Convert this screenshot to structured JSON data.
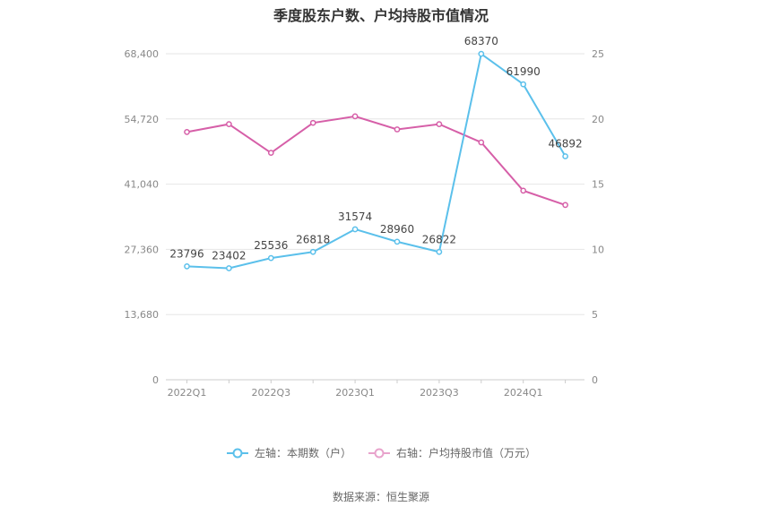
{
  "title": "季度股东户数、户均持股市值情况",
  "source": "数据来源：恒生聚源",
  "colors": {
    "left": "#5bc0eb",
    "right": "#d65fa8"
  },
  "chart_data": {
    "type": "line",
    "categories": [
      "2022Q1",
      "2022Q2",
      "2022Q3",
      "2022Q4",
      "2023Q1",
      "2023Q2",
      "2023Q3",
      "2023Q4",
      "2024Q1",
      "2024Q2"
    ],
    "x_tick_labels": [
      "2022Q1",
      "2022Q3",
      "2023Q1",
      "2023Q3",
      "2024Q1"
    ],
    "left_axis": {
      "ylim": [
        0,
        68400
      ],
      "ticks": [
        0,
        13680,
        27360,
        41040,
        54720,
        68400
      ],
      "tick_labels": [
        "0",
        "13,680",
        "27,360",
        "41,040",
        "54,720",
        "68,400"
      ]
    },
    "right_axis": {
      "ylim": [
        0,
        25
      ],
      "ticks": [
        0,
        5,
        10,
        15,
        20,
        25
      ],
      "tick_labels": [
        "0",
        "5",
        "10",
        "15",
        "20",
        "25"
      ]
    },
    "series": [
      {
        "name": "左轴：本期数（户）",
        "axis": "left",
        "values": [
          23796,
          23402,
          25536,
          26818,
          31574,
          28960,
          26822,
          68370,
          61990,
          46892
        ],
        "labels": [
          "23796",
          "23402",
          "25536",
          "26818",
          "31574",
          "28960",
          "26822",
          "68370",
          "61990",
          "46892"
        ]
      },
      {
        "name": "右轴：户均持股市值（万元）",
        "axis": "right",
        "values": [
          19.0,
          19.6,
          17.4,
          19.7,
          20.2,
          19.2,
          19.6,
          18.2,
          14.5,
          13.4
        ]
      }
    ],
    "grid": true,
    "legend_position": "bottom"
  }
}
